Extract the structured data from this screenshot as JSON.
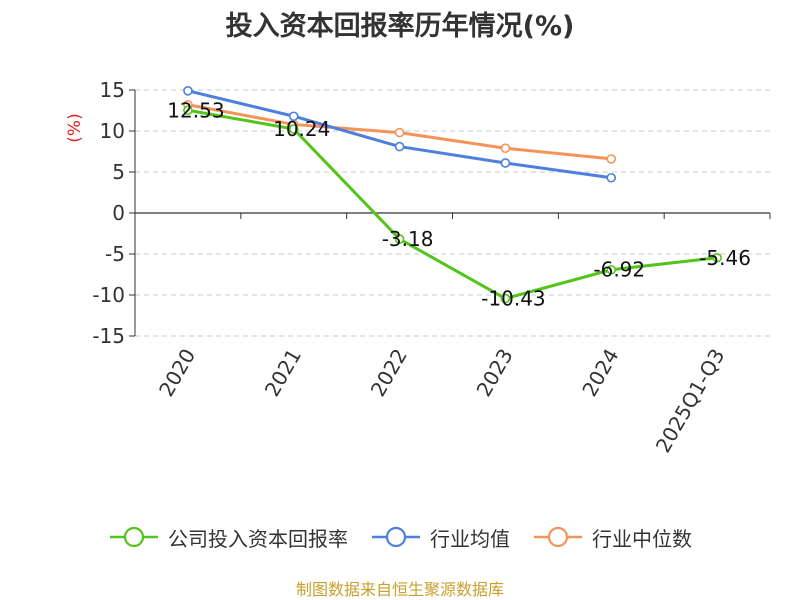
{
  "chart_data": {
    "type": "line",
    "title": "投入资本回报率历年情况(%)",
    "ylabel": "(%)",
    "xlabel": "",
    "categories": [
      "2020",
      "2021",
      "2022",
      "2023",
      "2024",
      "2025Q1-Q3"
    ],
    "ylim": [
      -15,
      15
    ],
    "yticks": [
      15,
      10,
      5,
      0,
      -5,
      -10,
      -15
    ],
    "grid": true,
    "legend_position": "bottom",
    "series": [
      {
        "name": "公司投入资本回报率",
        "color": "#52c41a",
        "values": [
          12.53,
          10.24,
          -3.18,
          -10.43,
          -6.92,
          -5.46
        ],
        "show_labels": true
      },
      {
        "name": "行业均值",
        "color": "#4f7fde",
        "values": [
          14.9,
          11.8,
          8.1,
          6.1,
          4.3,
          null
        ],
        "show_labels": false
      },
      {
        "name": "行业中位数",
        "color": "#f5935a",
        "values": [
          13.2,
          10.8,
          9.8,
          7.9,
          6.6,
          null
        ],
        "show_labels": false
      }
    ]
  },
  "source": "制图数据来自恒生聚源数据库"
}
